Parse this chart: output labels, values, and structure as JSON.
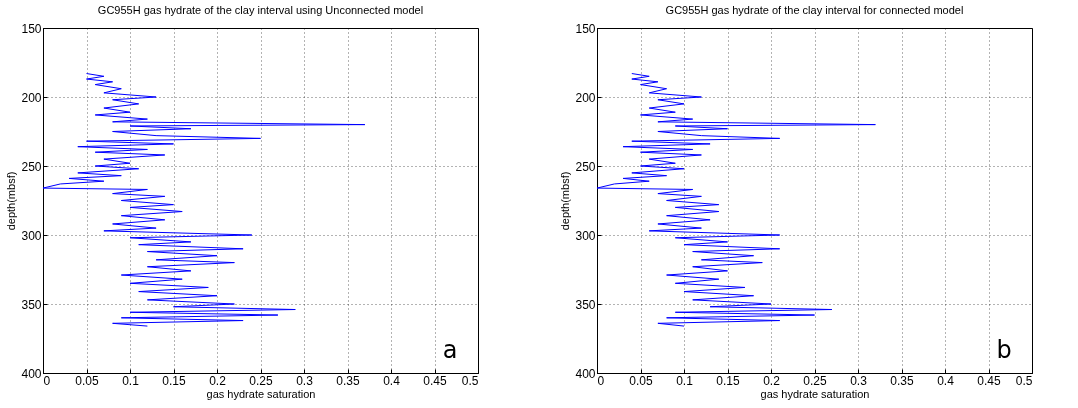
{
  "chart_data": [
    {
      "type": "line",
      "title": "GC955H gas hydrate of the clay interval using Unconnected model",
      "xlabel": "gas hydrate saturation",
      "ylabel": "depth(mbsf)",
      "xlim": [
        0,
        0.5
      ],
      "xticks": [
        0,
        0.05,
        0.1,
        0.15,
        0.2,
        0.25,
        0.3,
        0.35,
        0.4,
        0.45,
        0.5
      ],
      "ylim": [
        400,
        150
      ],
      "yticks": [
        150,
        200,
        250,
        300,
        350,
        400
      ],
      "grid": true,
      "marker": "none",
      "annotations": [
        "a"
      ],
      "series": [
        {
          "color": "#0000ff",
          "x": [
            0.05,
            0.07,
            0.05,
            0.08,
            0.06,
            0.09,
            0.07,
            0.13,
            0.08,
            0.11,
            0.07,
            0.1,
            0.06,
            0.12,
            0.08,
            0.37,
            0.1,
            0.17,
            0.08,
            0.13,
            0.25,
            0.05,
            0.15,
            0.04,
            0.12,
            0.06,
            0.14,
            0.07,
            0.1,
            0.06,
            0.11,
            0.04,
            0.09,
            0.03,
            0.07,
            0.02,
            0,
            0.12,
            0.08,
            0.14,
            0.09,
            0.15,
            0.1,
            0.16,
            0.09,
            0.14,
            0.08,
            0.13,
            0.07,
            0.24,
            0.1,
            0.17,
            0.11,
            0.23,
            0.12,
            0.2,
            0.13,
            0.22,
            0.12,
            0.17,
            0.09,
            0.16,
            0.1,
            0.19,
            0.11,
            0.2,
            0.12,
            0.22,
            0.15,
            0.29,
            0.1,
            0.27,
            0.09,
            0.23,
            0.08,
            0.12
          ],
          "values": [
            183,
            185,
            187,
            189,
            191,
            194,
            197,
            200,
            202,
            205,
            208,
            211,
            213,
            216,
            218,
            220,
            221,
            223,
            225,
            228,
            230,
            232,
            234,
            236,
            238,
            240,
            242,
            245,
            248,
            250,
            252,
            255,
            257,
            259,
            261,
            263,
            266,
            267,
            270,
            272,
            275,
            278,
            280,
            283,
            286,
            289,
            292,
            295,
            297,
            300,
            302,
            305,
            307,
            310,
            312,
            315,
            318,
            320,
            323,
            326,
            329,
            332,
            335,
            338,
            341,
            344,
            347,
            350,
            352,
            354,
            356,
            358,
            360,
            362,
            364,
            366
          ]
        }
      ]
    },
    {
      "type": "line",
      "title": "GC955H gas hydrate of the clay interval for connected model",
      "xlabel": "gas hydrate saturation",
      "ylabel": "depth(mbsf)",
      "xlim": [
        0,
        0.5
      ],
      "xticks": [
        0,
        0.05,
        0.1,
        0.15,
        0.2,
        0.25,
        0.3,
        0.35,
        0.4,
        0.45,
        0.5
      ],
      "ylim": [
        400,
        150
      ],
      "yticks": [
        150,
        200,
        250,
        300,
        350,
        400
      ],
      "grid": true,
      "marker": "none",
      "annotations": [
        "b"
      ],
      "series": [
        {
          "color": "#0000ff",
          "x": [
            0.04,
            0.06,
            0.04,
            0.07,
            0.05,
            0.08,
            0.06,
            0.12,
            0.07,
            0.1,
            0.06,
            0.09,
            0.05,
            0.11,
            0.07,
            0.32,
            0.09,
            0.15,
            0.07,
            0.12,
            0.21,
            0.04,
            0.13,
            0.03,
            0.11,
            0.05,
            0.12,
            0.06,
            0.09,
            0.05,
            0.1,
            0.04,
            0.08,
            0.03,
            0.06,
            0.02,
            0,
            0.11,
            0.07,
            0.12,
            0.08,
            0.14,
            0.09,
            0.14,
            0.08,
            0.13,
            0.07,
            0.12,
            0.06,
            0.21,
            0.09,
            0.15,
            0.1,
            0.21,
            0.11,
            0.18,
            0.12,
            0.19,
            0.11,
            0.15,
            0.08,
            0.14,
            0.09,
            0.17,
            0.1,
            0.18,
            0.11,
            0.2,
            0.13,
            0.27,
            0.09,
            0.25,
            0.08,
            0.21,
            0.07,
            0.1
          ],
          "values": [
            183,
            185,
            187,
            189,
            191,
            194,
            197,
            200,
            202,
            205,
            208,
            211,
            213,
            216,
            218,
            220,
            221,
            223,
            225,
            228,
            230,
            232,
            234,
            236,
            238,
            240,
            242,
            245,
            248,
            250,
            252,
            255,
            257,
            259,
            261,
            263,
            266,
            267,
            270,
            272,
            275,
            278,
            280,
            283,
            286,
            289,
            292,
            295,
            297,
            300,
            302,
            305,
            307,
            310,
            312,
            315,
            318,
            320,
            323,
            326,
            329,
            332,
            335,
            338,
            341,
            344,
            347,
            350,
            352,
            354,
            356,
            358,
            360,
            362,
            364,
            366
          ]
        }
      ]
    }
  ]
}
